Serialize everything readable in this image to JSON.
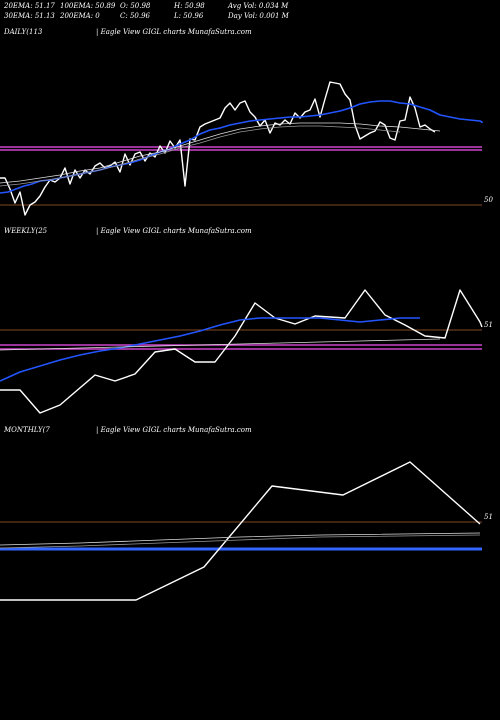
{
  "header": {
    "row1": [
      "20EMA: 51.17",
      "100EMA: 50.89",
      "O: 50.98",
      "H: 50.98",
      "Avg Vol: 0.034  M"
    ],
    "row2": [
      "30EMA: 51.13",
      "200EMA: 0",
      "C: 50.96",
      "L: 50.96",
      "Day Vol: 0.001 M"
    ]
  },
  "colors": {
    "background": "#000000",
    "price": "#ffffff",
    "ema": "#2255ff",
    "support": "#cc44cc",
    "resistance": "#b06030",
    "blue_band": "#3366ff"
  },
  "chart_data": [
    {
      "type": "line",
      "title": "DAILY(113",
      "subtitle": "| Eagle  View  GIGL  charts MunafaSutra.com",
      "tick_label": "50",
      "series": [
        {
          "role": "price",
          "values": [
            178,
            178,
            189,
            203,
            192,
            215,
            205,
            202,
            196,
            187,
            180,
            182,
            178,
            168,
            184,
            170,
            178,
            170,
            174,
            166,
            163,
            168,
            166,
            162,
            172,
            154,
            165,
            154,
            152,
            161,
            153,
            157,
            146,
            153,
            141,
            148,
            140,
            186,
            139,
            140,
            127,
            124,
            122,
            120,
            118,
            108,
            103,
            110,
            103,
            101,
            112,
            117,
            126,
            120,
            133,
            123,
            125,
            120,
            124,
            113,
            118,
            112,
            110,
            99,
            117,
            99,
            82,
            83,
            84,
            94,
            100,
            125,
            139,
            136,
            133,
            131,
            122,
            125,
            138,
            140,
            121,
            120,
            97,
            108,
            127,
            125,
            129,
            132
          ],
          "x": [
            0,
            5,
            10,
            15,
            20,
            25,
            30,
            35,
            40,
            45,
            50,
            55,
            60,
            65,
            70,
            75,
            80,
            85,
            90,
            95,
            100,
            105,
            110,
            115,
            120,
            125,
            130,
            135,
            140,
            145,
            150,
            155,
            160,
            165,
            170,
            175,
            180,
            185,
            190,
            195,
            200,
            205,
            210,
            215,
            220,
            225,
            230,
            235,
            240,
            245,
            250,
            255,
            260,
            265,
            270,
            275,
            280,
            285,
            290,
            295,
            300,
            305,
            310,
            315,
            320,
            325,
            330,
            335,
            340,
            345,
            350,
            355,
            360,
            365,
            370,
            375,
            380,
            385,
            390,
            395,
            400,
            405,
            410,
            415,
            420,
            425,
            430,
            435
          ]
        },
        {
          "role": "ema",
          "values": [
            193,
            192,
            189,
            186,
            184,
            181,
            180,
            178,
            176,
            174,
            172,
            170,
            167,
            165,
            163,
            160,
            156,
            152,
            149,
            144,
            140,
            134,
            130,
            128,
            125,
            123,
            121,
            120,
            119,
            118,
            117,
            117,
            116,
            115,
            113,
            111,
            108,
            104,
            102,
            101,
            101,
            103,
            104,
            107,
            110,
            115,
            117,
            119,
            120,
            121,
            122,
            123,
            123
          ],
          "x": [
            0,
            8,
            16,
            24,
            32,
            40,
            50,
            60,
            70,
            80,
            90,
            100,
            110,
            120,
            130,
            140,
            150,
            160,
            170,
            180,
            190,
            200,
            210,
            220,
            230,
            240,
            250,
            260,
            270,
            280,
            290,
            300,
            310,
            320,
            330,
            340,
            350,
            360,
            370,
            380,
            390,
            400,
            410,
            420,
            430,
            440,
            450,
            460,
            470,
            480,
            490,
            500,
            510
          ]
        },
        {
          "role": "ma_a",
          "values": [
            183,
            181,
            178,
            175,
            171,
            168,
            162,
            156,
            152,
            146,
            140,
            134,
            129,
            126,
            124,
            123,
            123,
            123,
            124,
            126,
            127,
            129,
            131
          ],
          "x": [
            0,
            20,
            40,
            60,
            80,
            100,
            120,
            140,
            160,
            180,
            200,
            220,
            240,
            260,
            280,
            300,
            320,
            340,
            360,
            380,
            400,
            420,
            440
          ]
        },
        {
          "role": "ma_b",
          "values": [
            186,
            184,
            181,
            178,
            174,
            170,
            165,
            159,
            154,
            148,
            143,
            137,
            132,
            129,
            127,
            126,
            126,
            127,
            128,
            130,
            132
          ],
          "x": [
            0,
            20,
            40,
            60,
            80,
            100,
            120,
            140,
            160,
            180,
            200,
            220,
            240,
            260,
            280,
            300,
            320,
            340,
            360,
            380,
            400
          ]
        }
      ],
      "hlines": [
        {
          "role": "support",
          "value": 150
        },
        {
          "role": "support",
          "value": 147
        },
        {
          "role": "resistance",
          "value": 205
        }
      ],
      "ylim": [
        0,
        220
      ]
    },
    {
      "type": "line",
      "title": "WEEKLY(25",
      "subtitle": "| Eagle  View  GIGL  charts MunafaSutra.com",
      "tick_label": "51",
      "series": [
        {
          "role": "price",
          "values": [
            390,
            390,
            413,
            405,
            375,
            381,
            374,
            352,
            349,
            362,
            362,
            336,
            303,
            318,
            324,
            316,
            318,
            290,
            315,
            325,
            336,
            338,
            290,
            322,
            327
          ],
          "x": [
            0,
            20,
            40,
            60,
            95,
            115,
            135,
            155,
            175,
            195,
            215,
            235,
            255,
            275,
            295,
            315,
            345,
            365,
            385,
            405,
            425,
            445,
            460,
            480,
            500
          ]
        },
        {
          "role": "ema",
          "values": [
            381,
            372,
            366,
            360,
            355,
            351,
            348,
            344,
            340,
            336,
            331,
            325,
            320,
            318,
            318,
            318,
            318,
            320,
            322,
            320,
            318,
            318
          ],
          "x": [
            0,
            20,
            40,
            60,
            80,
            100,
            120,
            140,
            160,
            180,
            200,
            220,
            240,
            260,
            280,
            300,
            320,
            340,
            360,
            380,
            400,
            420
          ]
        },
        {
          "role": "ma_a",
          "values": [
            350,
            349,
            348,
            347,
            346,
            345,
            344,
            343,
            342,
            341,
            340,
            339
          ],
          "x": [
            0,
            40,
            80,
            120,
            160,
            200,
            240,
            280,
            320,
            360,
            400,
            440
          ]
        }
      ],
      "hlines": [
        {
          "role": "support",
          "value": 345
        },
        {
          "role": "support",
          "value": 349
        },
        {
          "role": "resistance",
          "value": 330
        }
      ],
      "ylim": [
        0,
        440
      ]
    },
    {
      "type": "line",
      "title": "MONTHLY(7",
      "subtitle": "| Eagle  View  GIGL  charts MunafaSutra.com",
      "tick_label": "51",
      "series": [
        {
          "role": "price",
          "values": [
            600,
            600,
            600,
            567,
            486,
            495,
            462,
            524
          ],
          "x": [
            0,
            68,
            136,
            204,
            272,
            343,
            410,
            480
          ]
        },
        {
          "role": "ma_a",
          "values": [
            545,
            543,
            540,
            537,
            535,
            533
          ],
          "x": [
            0,
            80,
            160,
            240,
            320,
            480
          ]
        },
        {
          "role": "ma_b",
          "values": [
            548,
            546,
            543,
            540,
            537,
            535
          ],
          "x": [
            0,
            80,
            160,
            240,
            320,
            480
          ]
        }
      ],
      "hlines": [
        {
          "role": "blue_band",
          "value": 549
        },
        {
          "role": "resistance",
          "value": 522
        }
      ],
      "ylim": [
        0,
        640
      ]
    }
  ]
}
